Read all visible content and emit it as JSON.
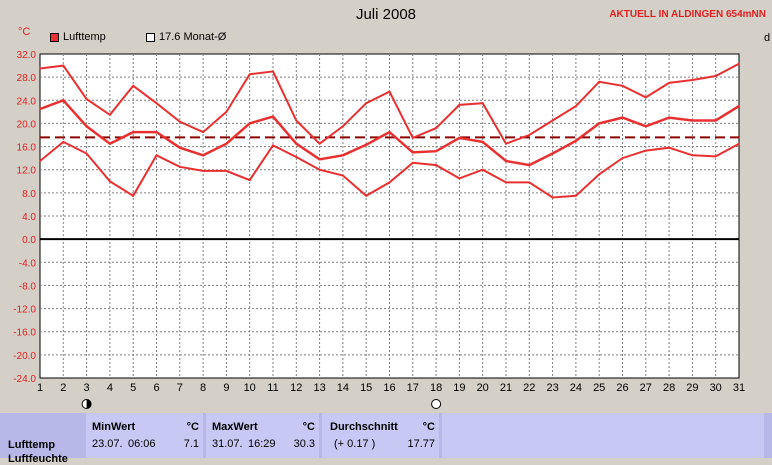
{
  "title": "Juli 2008",
  "brand": "AKTUELL IN ALDINGEN 654mNN",
  "unit": "°C",
  "unit_right": "d",
  "legend": [
    {
      "label": "Lufttemp",
      "color": "#e83030"
    },
    {
      "label": "17.6 Monat-Ø",
      "color": "#ffffff"
    }
  ],
  "chart_data": {
    "type": "line",
    "title": "Juli 2008",
    "ylabel": "°C",
    "ylim": [
      -24,
      32
    ],
    "yticks": [
      "32.0",
      "28.0",
      "24.0",
      "20.0",
      "16.0",
      "12.0",
      "8.0",
      "4.0",
      "0.0",
      "-4.0",
      "-8.0",
      "-12.0",
      "-16.0",
      "-20.0",
      "-24.0"
    ],
    "x": [
      1,
      2,
      3,
      4,
      5,
      6,
      7,
      8,
      9,
      10,
      11,
      12,
      13,
      14,
      15,
      16,
      17,
      18,
      19,
      20,
      21,
      22,
      23,
      24,
      25,
      26,
      27,
      28,
      29,
      30,
      31
    ],
    "grid": true,
    "reference_line": {
      "value": 17.6,
      "color": "#8b0000",
      "style": "dashed"
    },
    "series": [
      {
        "role": "max",
        "color": "#e83030",
        "values": [
          29.5,
          30,
          24.2,
          21.5,
          26.5,
          23.5,
          20.3,
          18.5,
          22,
          28.5,
          29,
          20.5,
          16.5,
          19.5,
          23.5,
          25.5,
          17.5,
          19.2,
          23.2,
          23.5,
          16.5,
          18,
          20.5,
          23,
          27.2,
          26.5,
          24.5,
          27,
          27.5,
          28.2,
          30.3
        ]
      },
      {
        "role": "mean",
        "color": "#e83030",
        "values": [
          22.5,
          24,
          19.5,
          16.5,
          18.5,
          18.5,
          15.8,
          14.5,
          16.5,
          20,
          21.2,
          16.5,
          13.8,
          14.5,
          16.3,
          18.5,
          15,
          15.2,
          17.5,
          16.8,
          13.5,
          12.8,
          14.8,
          17,
          20,
          21,
          19.5,
          21,
          20.5,
          20.5,
          23
        ]
      },
      {
        "role": "min",
        "color": "#e83030",
        "values": [
          13.5,
          16.8,
          14.8,
          10,
          7.5,
          14.5,
          12.5,
          11.8,
          11.8,
          10.2,
          16.2,
          14.2,
          12,
          11,
          7.5,
          9.8,
          13.2,
          12.8,
          10.5,
          12,
          9.8,
          9.8,
          7.2,
          7.5,
          11.2,
          14,
          15.3,
          15.8,
          14.5,
          14.3,
          16.5
        ]
      }
    ],
    "moon_markers": [
      {
        "day": 3,
        "phase": "waning"
      },
      {
        "day": 18,
        "phase": "full"
      }
    ]
  },
  "table": {
    "row_label": "Lufttemp",
    "second_row_label": "Luftfeuchte",
    "min": {
      "header": "MinWert",
      "unit": "°C",
      "date": "23.07.",
      "time": "06:06",
      "value": "7.1"
    },
    "max": {
      "header": "MaxWert",
      "unit": "°C",
      "date": "31.07.",
      "time": "16:29",
      "value": "30.3"
    },
    "avg": {
      "header": "Durchschnitt",
      "unit": "°C",
      "delta": "(+ 0.17 )",
      "value": "17.77"
    }
  }
}
